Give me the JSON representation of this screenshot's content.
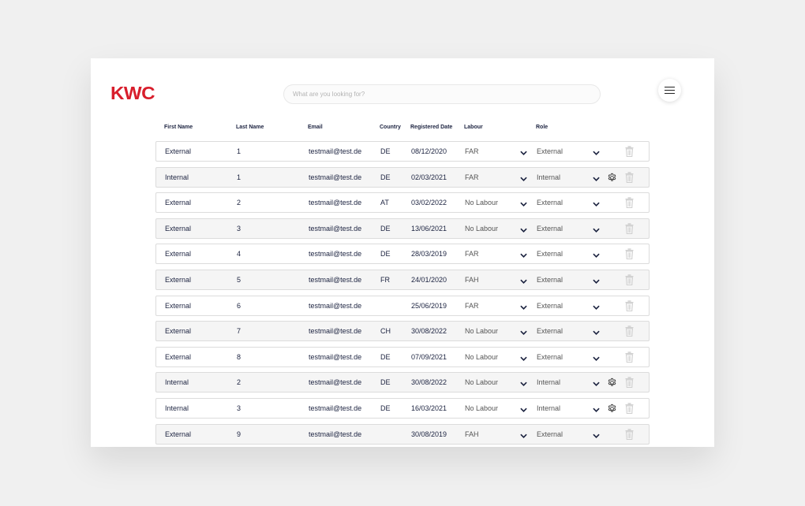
{
  "app": {
    "logo": "KWC",
    "search_placeholder": "What are you looking for?"
  },
  "table": {
    "headers": {
      "first_name": "First Name",
      "last_name": "Last Name",
      "email": "Email",
      "country": "Country",
      "registered_date": "Registered Date",
      "labour": "Labour",
      "role": "Role"
    },
    "rows": [
      {
        "first_name": "External",
        "last_name": "1",
        "email": "testmail@test.de",
        "country": "DE",
        "date": "08/12/2020",
        "labour": "FAR",
        "role": "External",
        "settings": false
      },
      {
        "first_name": "Internal",
        "last_name": "1",
        "email": "testmail@test.de",
        "country": "DE",
        "date": "02/03/2021",
        "labour": "FAR",
        "role": "Internal",
        "settings": true
      },
      {
        "first_name": "External",
        "last_name": "2",
        "email": "testmail@test.de",
        "country": "AT",
        "date": "03/02/2022",
        "labour": "No Labour",
        "role": "External",
        "settings": false
      },
      {
        "first_name": "External",
        "last_name": "3",
        "email": "testmail@test.de",
        "country": "DE",
        "date": "13/06/2021",
        "labour": "No Labour",
        "role": "External",
        "settings": false
      },
      {
        "first_name": "External",
        "last_name": "4",
        "email": "testmail@test.de",
        "country": "DE",
        "date": "28/03/2019",
        "labour": "FAR",
        "role": "External",
        "settings": false
      },
      {
        "first_name": "External",
        "last_name": "5",
        "email": "testmail@test.de",
        "country": "FR",
        "date": "24/01/2020",
        "labour": "FAH",
        "role": "External",
        "settings": false
      },
      {
        "first_name": "External",
        "last_name": "6",
        "email": "testmail@test.de",
        "country": "",
        "date": "25/06/2019",
        "labour": "FAR",
        "role": "External",
        "settings": false
      },
      {
        "first_name": "External",
        "last_name": "7",
        "email": "testmail@test.de",
        "country": "CH",
        "date": "30/08/2022",
        "labour": "No Labour",
        "role": "External",
        "settings": false
      },
      {
        "first_name": "External",
        "last_name": "8",
        "email": "testmail@test.de",
        "country": "DE",
        "date": "07/09/2021",
        "labour": "No Labour",
        "role": "External",
        "settings": false
      },
      {
        "first_name": "Internal",
        "last_name": "2",
        "email": "testmail@test.de",
        "country": "DE",
        "date": "30/08/2022",
        "labour": "No Labour",
        "role": "Internal",
        "settings": true
      },
      {
        "first_name": "Internal",
        "last_name": "3",
        "email": "testmail@test.de",
        "country": "DE",
        "date": "16/03/2021",
        "labour": "No Labour",
        "role": "Internal",
        "settings": true
      },
      {
        "first_name": "External",
        "last_name": "9",
        "email": "testmail@test.de",
        "country": "",
        "date": "30/08/2019",
        "labour": "FAH",
        "role": "External",
        "settings": false
      }
    ]
  },
  "icons": {
    "menu": "hamburger-menu-icon",
    "dropdown": "chevron-down-icon",
    "settings": "gear-icon",
    "delete": "trash-icon"
  },
  "colors": {
    "brand": "#d81e2c",
    "text": "#1c2340",
    "row_alt": "#f5f5f5",
    "border": "#dcdcdc"
  }
}
